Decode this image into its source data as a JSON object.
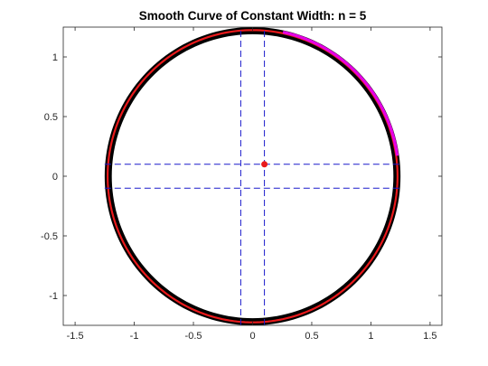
{
  "chart_data": {
    "type": "line",
    "title": "Smooth Curve of Constant Width: n = 5",
    "xlabel": "",
    "ylabel": "",
    "xlim": [
      -1.6,
      1.6
    ],
    "ylim": [
      -1.25,
      1.25
    ],
    "xticks": [
      -1.5,
      -1,
      -0.5,
      0,
      0.5,
      1,
      1.5
    ],
    "xtick_labels": [
      "-1.5",
      "-1",
      "-0.5",
      "0",
      "0.5",
      "1",
      "1.5"
    ],
    "yticks": [
      -1,
      -0.5,
      0,
      0.5,
      1
    ],
    "ytick_labels": [
      "-1",
      "-0.5",
      "0",
      "0.5",
      "1"
    ],
    "grid": false,
    "box": true,
    "colors": {
      "axes": "#262626",
      "envelope": "#000000",
      "curve": "#e8191b",
      "magenta": "#e600e6",
      "dashed": "#1a1acc",
      "point": "#e8191b"
    },
    "series": [
      {
        "style": "filled-band",
        "color": "#000000",
        "note_points": "outer/inner boundary of black envelope",
        "outer_radius": 1.25,
        "inner_radius": 1.19
      },
      {
        "style": "solid",
        "color": "#e8191b",
        "radius": 1.225
      },
      {
        "style": "solid",
        "color": "#e600e6",
        "arc_start_deg": 8,
        "arc_end_deg": 78,
        "radius": 1.235
      },
      {
        "style": "dashed",
        "color": "#1a1acc",
        "x": [
          -1.25,
          1.25
        ],
        "y": [
          0.1,
          0.1
        ]
      },
      {
        "style": "dashed",
        "color": "#1a1acc",
        "x": [
          -1.25,
          1.25
        ],
        "y": [
          -0.1,
          -0.1
        ]
      },
      {
        "style": "dashed",
        "color": "#1a1acc",
        "x": [
          -0.1,
          -0.1
        ],
        "y": [
          -1.25,
          1.25
        ]
      },
      {
        "style": "dashed",
        "color": "#1a1acc",
        "x": [
          0.1,
          0.1
        ],
        "y": [
          -1.25,
          1.25
        ]
      },
      {
        "style": "marker",
        "color": "#e8191b",
        "x": [
          0.1
        ],
        "y": [
          0.1
        ]
      }
    ]
  }
}
